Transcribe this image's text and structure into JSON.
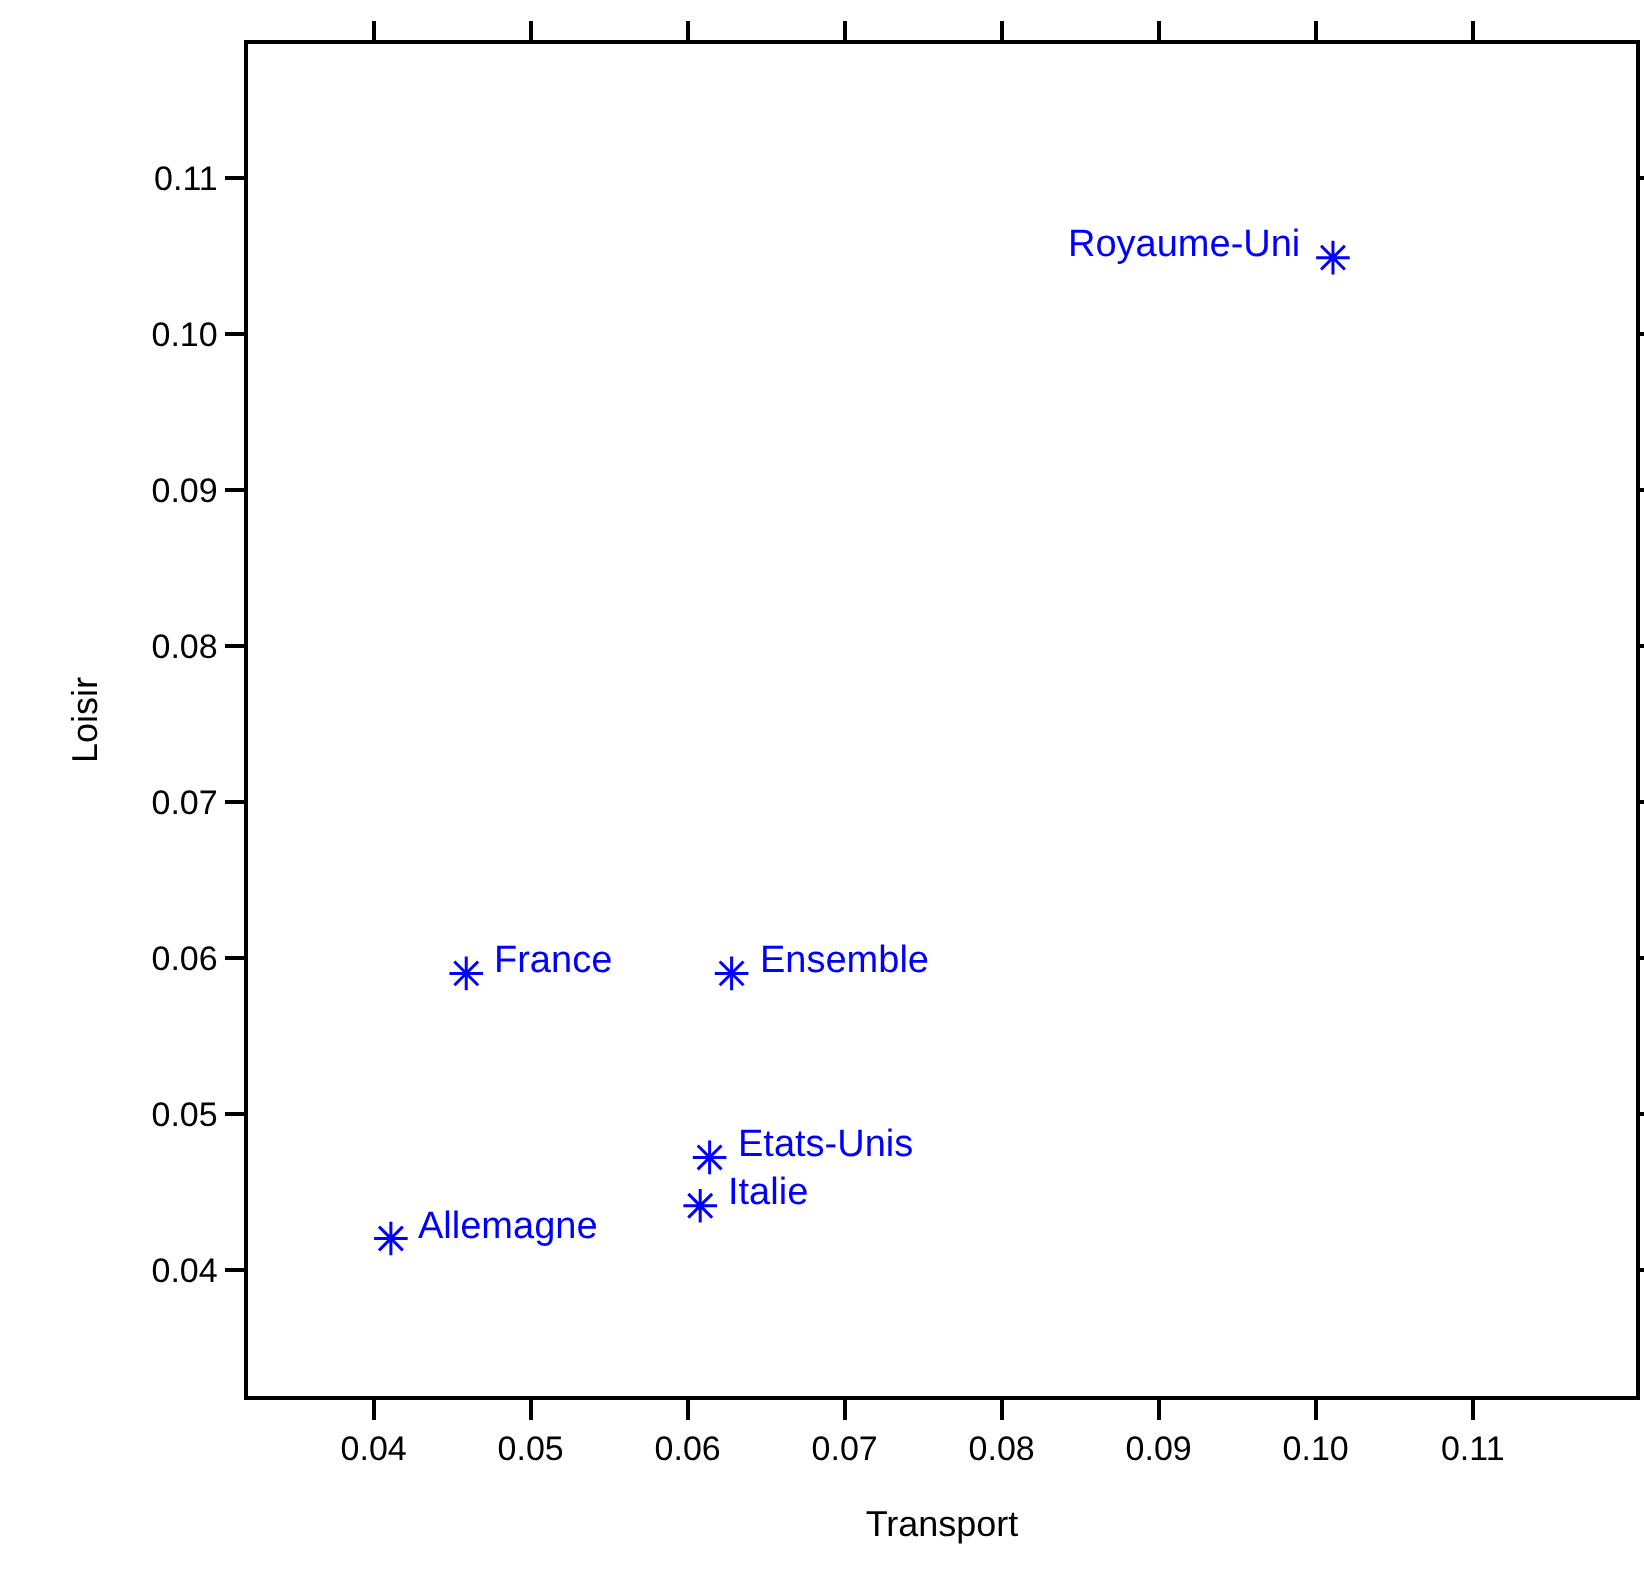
{
  "chart_data": {
    "type": "scatter",
    "xlabel": "Transport",
    "ylabel": "Loisir",
    "x": [
      0.1011,
      0.0459,
      0.0628,
      0.0614,
      0.0608,
      0.0411
    ],
    "series": [
      {
        "color": "#0000ff",
        "values": [
          0.1049,
          0.059,
          0.059,
          0.0472,
          0.0441,
          0.042
        ]
      }
    ],
    "annotations": [
      {
        "text": "Royaume-Uni",
        "x": 0.1011,
        "y": 0.1049
      },
      {
        "text": "France",
        "x": 0.0459,
        "y": 0.059
      },
      {
        "text": "Ensemble",
        "x": 0.0628,
        "y": 0.059
      },
      {
        "text": "Etats-Unis",
        "x": 0.0614,
        "y": 0.0472
      },
      {
        "text": "Italie",
        "x": 0.0608,
        "y": 0.0441
      },
      {
        "text": "Allemagne",
        "x": 0.0411,
        "y": 0.042
      }
    ],
    "xlim": [
      0.032,
      0.1204
    ],
    "ylim": [
      0.0319,
      0.1186
    ],
    "xticks": [
      0.04,
      0.05,
      0.06,
      0.07,
      0.08,
      0.09,
      {
        "value": 0.1,
        "label": "0.10"
      },
      0.11
    ],
    "yticks": [
      0.04,
      0.05,
      0.06,
      0.07,
      0.08,
      0.09,
      {
        "value": 0.1,
        "label": "0.10"
      },
      0.11
    ],
    "grid": false,
    "marker": "cross"
  }
}
